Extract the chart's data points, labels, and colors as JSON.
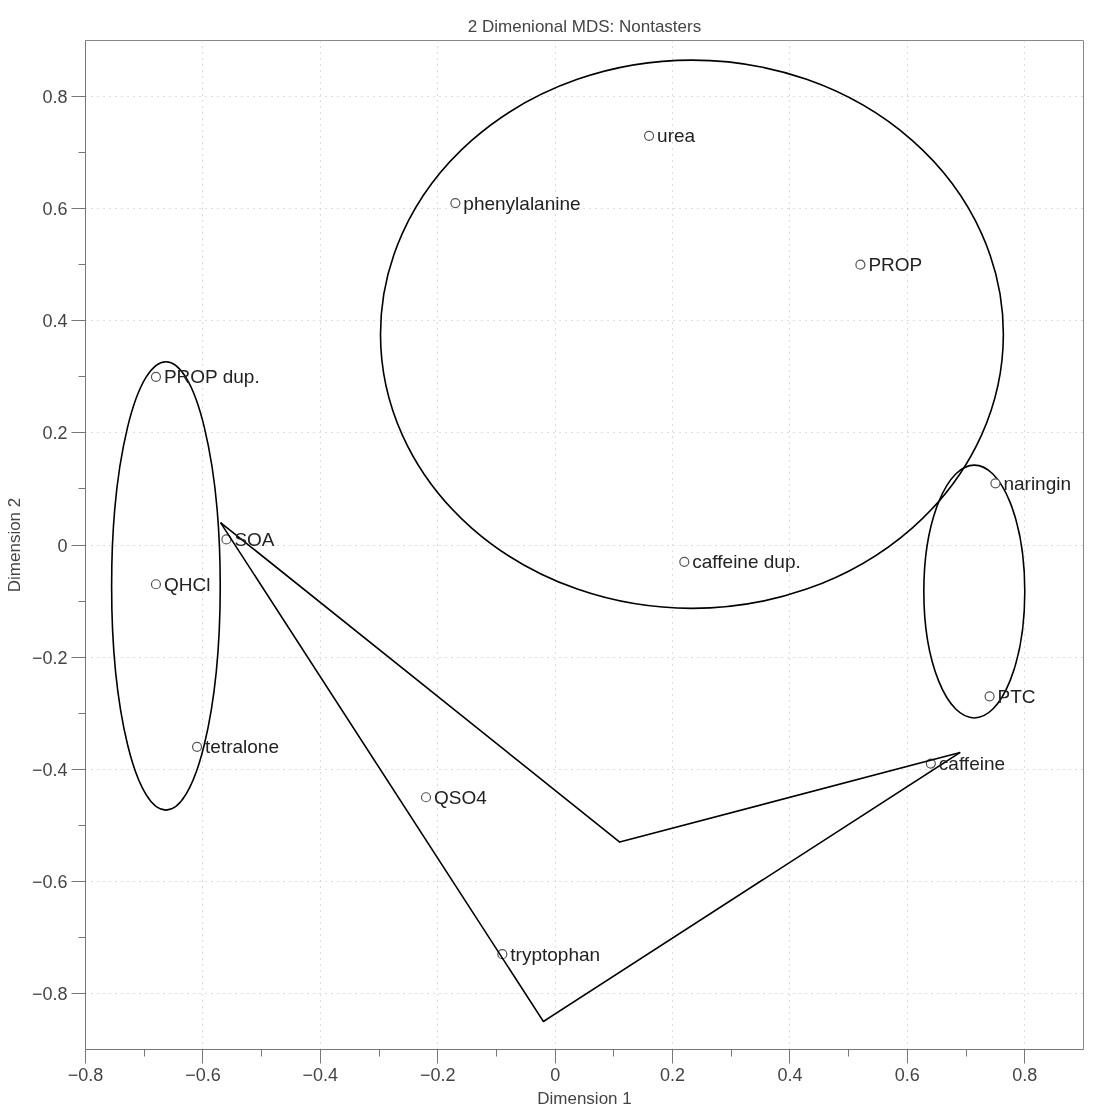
{
  "chart_data": {
    "type": "scatter",
    "title": "2 Dimenional MDS: Nontasters",
    "xlabel": "Dimension 1",
    "ylabel": "Dimension 2",
    "series": [
      {
        "type": "scatter",
        "color": "#555555",
        "marker": "circle",
        "x": [
          0.16,
          -0.17,
          0.52,
          -0.68,
          0.75,
          -0.56,
          0.22,
          -0.68,
          0.74,
          -0.61,
          0.64,
          -0.22,
          -0.09
        ],
        "values": [
          0.73,
          0.61,
          0.5,
          0.3,
          0.11,
          0.01,
          -0.03,
          -0.07,
          -0.27,
          -0.36,
          -0.39,
          -0.45,
          -0.73
        ]
      },
      {
        "type": "line",
        "color": "#000000",
        "marker": "none",
        "x": [
          -0.57,
          0.11,
          0.69
        ],
        "values": [
          0.04,
          -0.53,
          -0.37
        ]
      },
      {
        "type": "line",
        "color": "#000000",
        "marker": "none",
        "x": [
          -0.57,
          -0.02,
          0.69
        ],
        "values": [
          0.04,
          -0.85,
          -0.37
        ]
      }
    ],
    "annotations": [
      {
        "text": "urea",
        "x": 0.16,
        "y": 0.73
      },
      {
        "text": "phenylalanine",
        "x": -0.17,
        "y": 0.61
      },
      {
        "text": "PROP",
        "x": 0.52,
        "y": 0.5
      },
      {
        "text": "PROP dup.",
        "x": -0.68,
        "y": 0.3
      },
      {
        "text": "naringin",
        "x": 0.75,
        "y": 0.11
      },
      {
        "text": "SOA",
        "x": -0.56,
        "y": 0.01
      },
      {
        "text": "caffeine dup.",
        "x": 0.22,
        "y": -0.03
      },
      {
        "text": "QHCl",
        "x": -0.68,
        "y": -0.07
      },
      {
        "text": "PTC",
        "x": 0.74,
        "y": -0.27
      },
      {
        "text": "tetralone",
        "x": -0.61,
        "y": -0.36
      },
      {
        "text": "caffeine",
        "x": 0.64,
        "y": -0.39
      },
      {
        "text": "QSO4",
        "x": -0.22,
        "y": -0.45
      },
      {
        "text": "tryptophan",
        "x": -0.09,
        "y": -0.73
      }
    ],
    "xlim": [
      -0.8,
      0.9
    ],
    "ylim": [
      -0.9,
      0.9
    ],
    "xticks": [
      {
        "value": -0.8,
        "label": "−0.8"
      },
      {
        "value": -0.6,
        "label": "−0.6"
      },
      {
        "value": -0.4,
        "label": "−0.4"
      },
      {
        "value": -0.2,
        "label": "−0.2"
      },
      0,
      0.2,
      0.4,
      0.6,
      0.8
    ],
    "yticks": [
      {
        "value": -0.8,
        "label": "−0.8"
      },
      {
        "value": -0.6,
        "label": "−0.6"
      },
      {
        "value": -0.4,
        "label": "−0.4"
      },
      {
        "value": -0.2,
        "label": "−0.2"
      },
      0,
      0.2,
      0.4,
      0.6,
      0.8
    ],
    "grid": true
  }
}
